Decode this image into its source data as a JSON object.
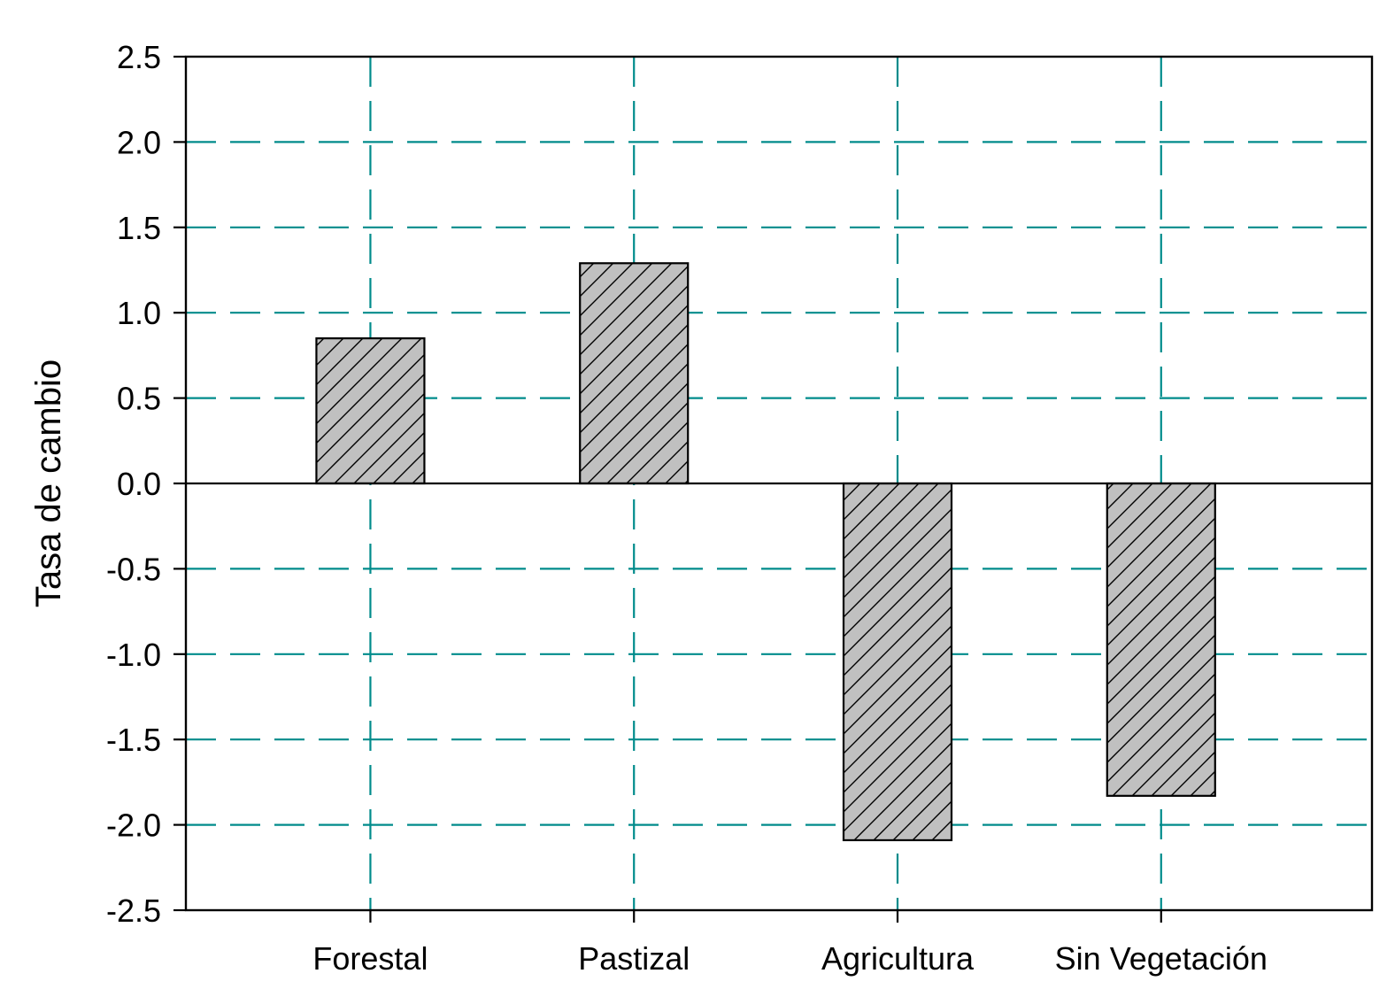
{
  "chart_data": {
    "type": "bar",
    "title": "",
    "xlabel": "",
    "ylabel": "Tasa de cambio",
    "categories": [
      "Forestal",
      "Pastizal",
      "Agricultura",
      "Sin Vegetación"
    ],
    "values": [
      0.85,
      1.29,
      -2.09,
      -1.83
    ],
    "ylim": [
      -2.5,
      2.5
    ],
    "yticks": [
      "2.5",
      "2.0",
      "1.5",
      "1.0",
      "0.5",
      "0.0",
      "-0.5",
      "-1.0",
      "-1.5",
      "-2.0",
      "-2.5"
    ],
    "ytick_values": [
      2.5,
      2.0,
      1.5,
      1.0,
      0.5,
      0.0,
      -0.5,
      -1.0,
      -1.5,
      -2.0,
      -2.5
    ],
    "grid": true,
    "grid_style": "dashed",
    "bar_pattern": "diagonal-hatch",
    "colors": {
      "bar_fill": "#c0c0c0",
      "hatch": "#000000",
      "grid": "#008b8b",
      "axis": "#000000"
    }
  }
}
